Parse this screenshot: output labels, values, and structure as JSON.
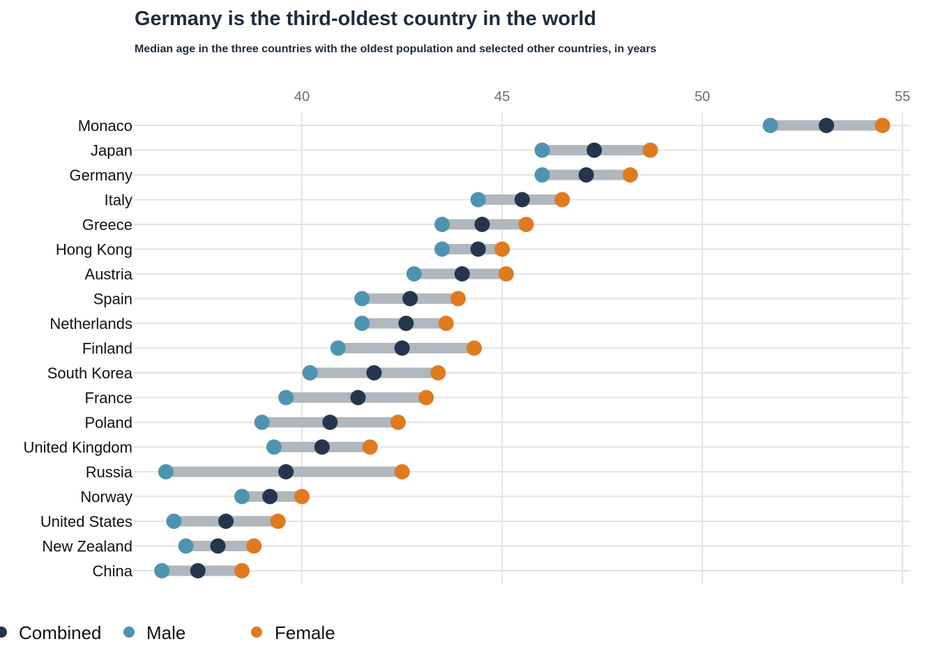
{
  "chart_data": {
    "type": "dumbbell",
    "title": "Germany is the third-oldest country in the world",
    "subtitle": "Median age in the three countries with the oldest population and selected other countries, in years",
    "xlabel": "",
    "ylabel": "",
    "xlim": [
      35.8,
      55.2
    ],
    "xticks": [
      40,
      45,
      50,
      55
    ],
    "x_axis_position": "top",
    "grid": true,
    "legend_position": "bottom-left",
    "colors": {
      "Combined": "#24364b",
      "Male": "#4e94b0",
      "Female": "#e07a1f",
      "connector": "#b0b7bd",
      "grid": "#e3e3e3"
    },
    "categories": [
      "Monaco",
      "Japan",
      "Germany",
      "Italy",
      "Greece",
      "Hong Kong",
      "Austria",
      "Spain",
      "Netherlands",
      "Finland",
      "South Korea",
      "France",
      "Poland",
      "United Kingdom",
      "Russia",
      "Norway",
      "United States",
      "New Zealand",
      "China"
    ],
    "series": [
      {
        "name": "Combined",
        "values": [
          53.1,
          47.3,
          47.1,
          45.5,
          44.5,
          44.4,
          44.0,
          42.7,
          42.6,
          42.5,
          41.8,
          41.4,
          40.7,
          40.5,
          39.6,
          39.2,
          38.1,
          37.9,
          37.4
        ]
      },
      {
        "name": "Male",
        "values": [
          51.7,
          46.0,
          46.0,
          44.4,
          43.5,
          43.5,
          42.8,
          41.5,
          41.5,
          40.9,
          40.2,
          39.6,
          39.0,
          39.3,
          36.6,
          38.5,
          36.8,
          37.1,
          36.5
        ]
      },
      {
        "name": "Female",
        "values": [
          54.5,
          48.7,
          48.2,
          46.5,
          45.6,
          45.0,
          45.1,
          43.9,
          43.6,
          44.3,
          43.4,
          43.1,
          42.4,
          41.7,
          42.5,
          40.0,
          39.4,
          38.8,
          38.5
        ]
      }
    ]
  }
}
